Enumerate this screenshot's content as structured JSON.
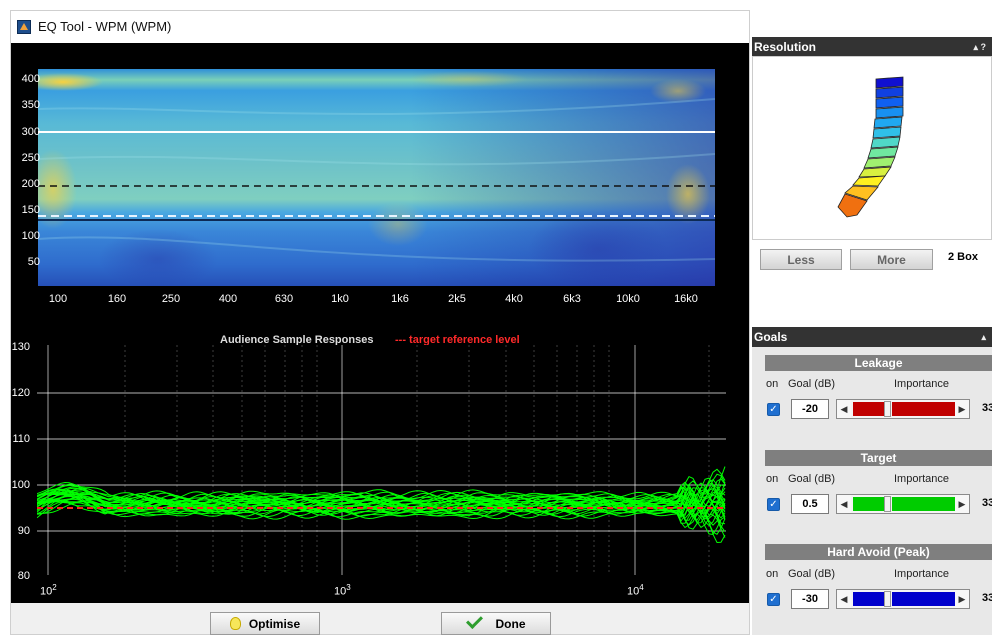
{
  "window": {
    "title": "EQ Tool - WPM (WPM)"
  },
  "heatmap": {
    "y_ticks": [
      "400",
      "350",
      "300",
      "250",
      "200",
      "150",
      "100",
      "50"
    ],
    "x_ticks": [
      "100",
      "160",
      "250",
      "400",
      "630",
      "1k0",
      "1k6",
      "2k5",
      "4k0",
      "6k3",
      "10k0",
      "16k0"
    ]
  },
  "response_plot": {
    "title": "Audience Sample Responses",
    "legend_label": "--- target reference level",
    "y_ticks": [
      "130",
      "120",
      "110",
      "100",
      "90",
      "80"
    ],
    "x_tick_base": "10",
    "x_tick_exponents": [
      "2",
      "3",
      "4"
    ],
    "line_color": "#00ff00",
    "target_color": "#ff2020"
  },
  "buttons": {
    "optimise": "Optimise",
    "done": "Done"
  },
  "resolution": {
    "header": "Resolution",
    "header_icons": "▴ ?",
    "less": "Less",
    "more": "More",
    "setting": "2 Box"
  },
  "goals": {
    "header": "Goals",
    "header_icon": "▴",
    "col_on": "on",
    "col_goal": "Goal (dB)",
    "col_importance": "Importance",
    "sections": [
      {
        "title": "Leakage",
        "goal": "-20",
        "color": "#c00000",
        "importance": "33",
        "checked": true
      },
      {
        "title": "Target",
        "goal": "0.5",
        "color": "#00cc00",
        "importance": "33",
        "checked": true
      },
      {
        "title": "Hard Avoid  (Peak)",
        "goal": "-30",
        "color": "#0000cc",
        "importance": "33",
        "checked": true
      }
    ]
  }
}
